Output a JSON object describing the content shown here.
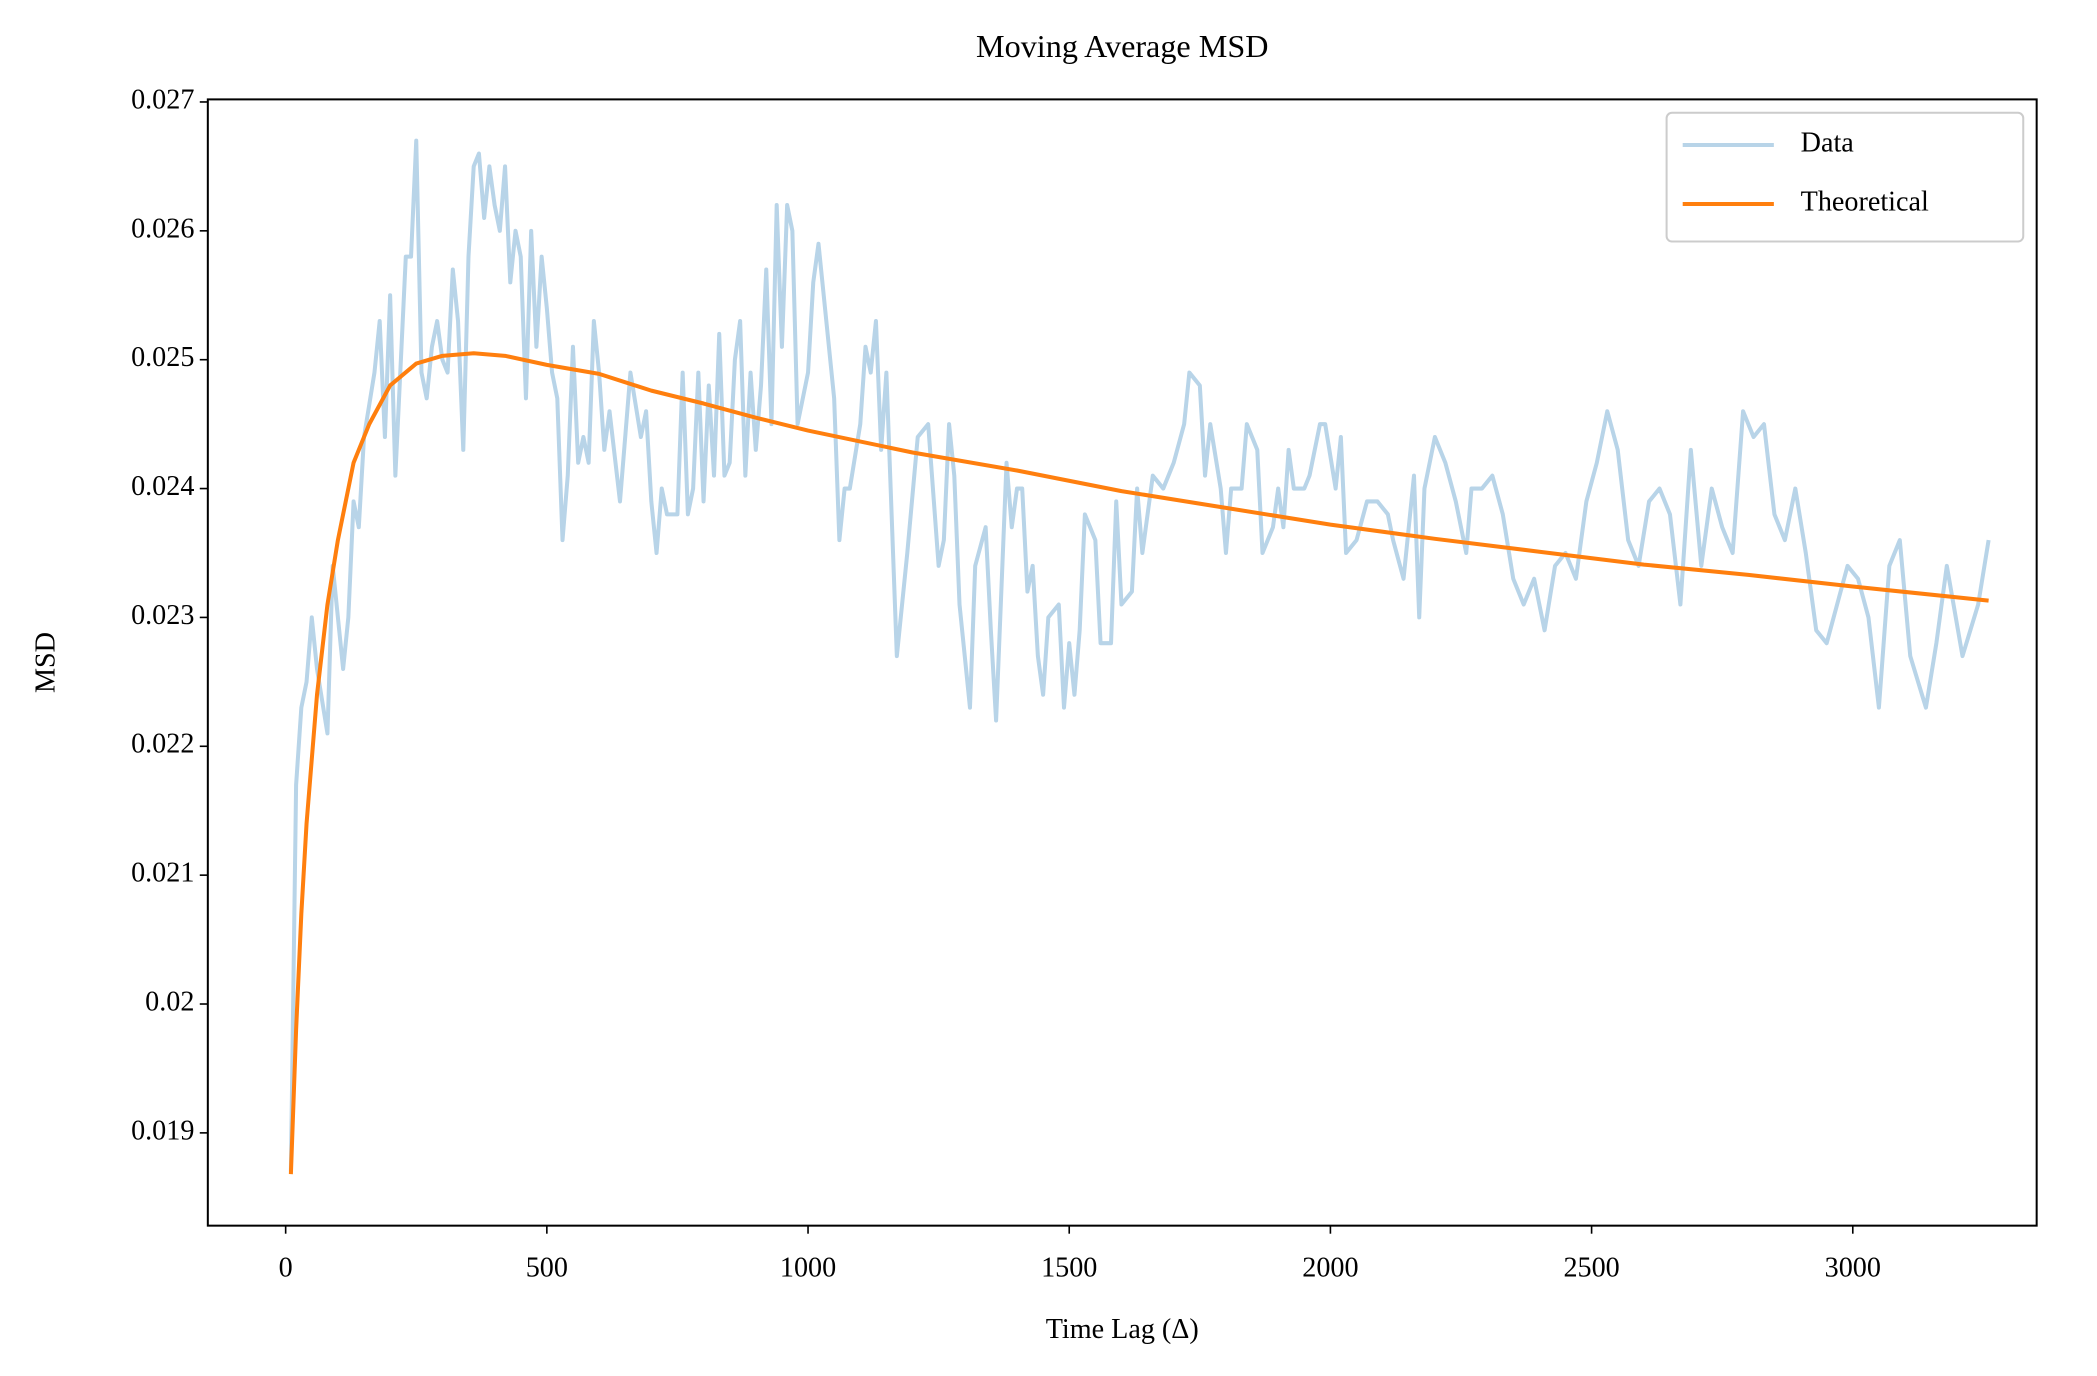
{
  "chart_data": {
    "type": "line",
    "title": "Moving Average MSD",
    "x_label": "Time Lag (Δ)",
    "y_label": "MSD",
    "xlim": [
      -149,
      3352
    ],
    "ylim": [
      0.01828,
      0.02702
    ],
    "xticks": [
      0,
      500,
      1000,
      1500,
      2000,
      2500,
      3000
    ],
    "yticks": [
      0.019,
      0.02,
      0.021,
      0.022,
      0.023,
      0.024,
      0.025,
      0.026,
      0.027
    ],
    "legend": "upper right",
    "grid": false,
    "series": [
      {
        "name": "Data",
        "color": "#b8d4e8",
        "x": [
          10,
          20,
          30,
          40,
          50,
          60,
          80,
          90,
          110,
          120,
          130,
          140,
          150,
          170,
          180,
          190,
          200,
          210,
          230,
          240,
          250,
          260,
          270,
          280,
          290,
          300,
          310,
          320,
          330,
          340,
          350,
          360,
          370,
          380,
          390,
          400,
          410,
          420,
          430,
          440,
          450,
          460,
          470,
          480,
          490,
          500,
          510,
          520,
          530,
          540,
          550,
          560,
          570,
          580,
          590,
          600,
          610,
          620,
          640,
          660,
          680,
          690,
          700,
          710,
          720,
          730,
          750,
          760,
          770,
          780,
          790,
          800,
          810,
          820,
          830,
          840,
          850,
          860,
          870,
          880,
          890,
          900,
          910,
          920,
          930,
          940,
          950,
          960,
          970,
          980,
          1000,
          1010,
          1020,
          1050,
          1060,
          1070,
          1080,
          1100,
          1110,
          1120,
          1130,
          1140,
          1150,
          1170,
          1190,
          1210,
          1230,
          1250,
          1260,
          1270,
          1280,
          1290,
          1310,
          1320,
          1340,
          1350,
          1360,
          1380,
          1390,
          1400,
          1410,
          1420,
          1430,
          1440,
          1450,
          1460,
          1480,
          1490,
          1500,
          1510,
          1520,
          1530,
          1550,
          1560,
          1580,
          1590,
          1600,
          1620,
          1630,
          1640,
          1660,
          1680,
          1700,
          1720,
          1730,
          1750,
          1760,
          1770,
          1790,
          1800,
          1810,
          1830,
          1840,
          1860,
          1870,
          1890,
          1900,
          1910,
          1920,
          1930,
          1950,
          1960,
          1980,
          1990,
          2010,
          2020,
          2030,
          2050,
          2070,
          2090,
          2110,
          2120,
          2140,
          2160,
          2170,
          2180,
          2200,
          2220,
          2240,
          2260,
          2270,
          2290,
          2310,
          2330,
          2350,
          2370,
          2390,
          2410,
          2430,
          2450,
          2470,
          2490,
          2510,
          2530,
          2550,
          2570,
          2590,
          2610,
          2630,
          2650,
          2670,
          2690,
          2710,
          2730,
          2750,
          2770,
          2790,
          2810,
          2830,
          2850,
          2870,
          2890,
          2910,
          2930,
          2950,
          2970,
          2990,
          3010,
          3030,
          3050,
          3070,
          3090,
          3110,
          3140,
          3160,
          3180,
          3210,
          3240,
          3260
        ],
        "values": [
          0.0187,
          0.0217,
          0.0223,
          0.0225,
          0.023,
          0.0226,
          0.0221,
          0.0234,
          0.0226,
          0.023,
          0.0239,
          0.0237,
          0.0244,
          0.0249,
          0.0253,
          0.0244,
          0.0255,
          0.0241,
          0.0258,
          0.0258,
          0.0267,
          0.0249,
          0.0247,
          0.0251,
          0.0253,
          0.025,
          0.0249,
          0.0257,
          0.0253,
          0.0243,
          0.0258,
          0.0265,
          0.0266,
          0.0261,
          0.0265,
          0.0262,
          0.026,
          0.0265,
          0.0256,
          0.026,
          0.0258,
          0.0247,
          0.026,
          0.0251,
          0.0258,
          0.0254,
          0.0249,
          0.0247,
          0.0236,
          0.0241,
          0.0251,
          0.0242,
          0.0244,
          0.0242,
          0.0253,
          0.0249,
          0.0243,
          0.0246,
          0.0239,
          0.0249,
          0.0244,
          0.0246,
          0.0239,
          0.0235,
          0.024,
          0.0238,
          0.0238,
          0.0249,
          0.0238,
          0.024,
          0.0249,
          0.0239,
          0.0248,
          0.0241,
          0.0252,
          0.0241,
          0.0242,
          0.025,
          0.0253,
          0.0241,
          0.0249,
          0.0243,
          0.0248,
          0.0257,
          0.0245,
          0.0262,
          0.0251,
          0.0262,
          0.026,
          0.0245,
          0.0249,
          0.0256,
          0.0259,
          0.0247,
          0.0236,
          0.024,
          0.024,
          0.0245,
          0.0251,
          0.0249,
          0.0253,
          0.0243,
          0.0249,
          0.0227,
          0.0235,
          0.0244,
          0.0245,
          0.0234,
          0.0236,
          0.0245,
          0.0241,
          0.0231,
          0.0223,
          0.0234,
          0.0237,
          0.0229,
          0.0222,
          0.0242,
          0.0237,
          0.024,
          0.024,
          0.0232,
          0.0234,
          0.0227,
          0.0224,
          0.023,
          0.0231,
          0.0223,
          0.0228,
          0.0224,
          0.0229,
          0.0238,
          0.0236,
          0.0228,
          0.0228,
          0.0239,
          0.0231,
          0.0232,
          0.024,
          0.0235,
          0.0241,
          0.024,
          0.0242,
          0.0245,
          0.0249,
          0.0248,
          0.0241,
          0.0245,
          0.024,
          0.0235,
          0.024,
          0.024,
          0.0245,
          0.0243,
          0.0235,
          0.0237,
          0.024,
          0.0237,
          0.0243,
          0.024,
          0.024,
          0.0241,
          0.0245,
          0.0245,
          0.024,
          0.0244,
          0.0235,
          0.0236,
          0.0239,
          0.0239,
          0.0238,
          0.0236,
          0.0233,
          0.0241,
          0.023,
          0.024,
          0.0244,
          0.0242,
          0.0239,
          0.0235,
          0.024,
          0.024,
          0.0241,
          0.0238,
          0.0233,
          0.0231,
          0.0233,
          0.0229,
          0.0234,
          0.0235,
          0.0233,
          0.0239,
          0.0242,
          0.0246,
          0.0243,
          0.0236,
          0.0234,
          0.0239,
          0.024,
          0.0238,
          0.0231,
          0.0243,
          0.0234,
          0.024,
          0.0237,
          0.0235,
          0.0246,
          0.0244,
          0.0245,
          0.0238,
          0.0236,
          0.024,
          0.0235,
          0.0229,
          0.0228,
          0.0231,
          0.0234,
          0.0233,
          0.023,
          0.0223,
          0.0234,
          0.0236,
          0.0227,
          0.0223,
          0.0228,
          0.0234,
          0.0227,
          0.0231,
          0.0236
        ]
      },
      {
        "name": "Theoretical",
        "color": "#ff7f0e",
        "x": [
          10,
          20,
          30,
          40,
          60,
          80,
          100,
          130,
          160,
          200,
          250,
          300,
          360,
          420,
          500,
          600,
          700,
          800,
          900,
          1000,
          1200,
          1400,
          1600,
          1800,
          2000,
          2200,
          2400,
          2600,
          2800,
          3000,
          3260
        ],
        "values": [
          0.01868,
          0.0198,
          0.0207,
          0.0214,
          0.0224,
          0.0231,
          0.0236,
          0.0242,
          0.0245,
          0.0248,
          0.02497,
          0.02503,
          0.02505,
          0.02503,
          0.02496,
          0.02489,
          0.02476,
          0.02466,
          0.02455,
          0.02445,
          0.02428,
          0.02414,
          0.02398,
          0.02385,
          0.02372,
          0.02361,
          0.02351,
          0.02341,
          0.02333,
          0.02324,
          0.02313
        ]
      }
    ]
  }
}
